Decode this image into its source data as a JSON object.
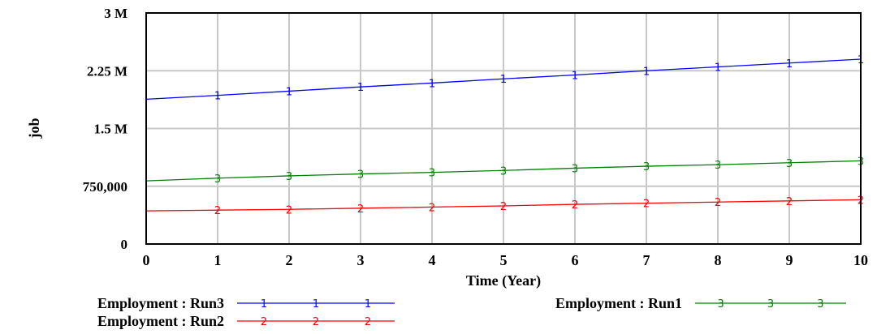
{
  "chart_data": {
    "type": "line",
    "title": "",
    "xlabel": "Time (Year)",
    "ylabel": "job",
    "x": [
      0,
      1,
      2,
      3,
      4,
      5,
      6,
      7,
      8,
      9,
      10
    ],
    "xlim": [
      0,
      10
    ],
    "ylim": [
      0,
      3000000
    ],
    "x_ticks": [
      "0",
      "1",
      "2",
      "3",
      "4",
      "5",
      "6",
      "7",
      "8",
      "9",
      "10"
    ],
    "y_ticks": [
      {
        "value": 0,
        "label": "0"
      },
      {
        "value": 750000,
        "label": "750,000"
      },
      {
        "value": 1500000,
        "label": "1.5 M"
      },
      {
        "value": 2250000,
        "label": "2.25 M"
      },
      {
        "value": 3000000,
        "label": "3 M"
      }
    ],
    "grid": true,
    "legend_position": "bottom",
    "series": [
      {
        "name": "Employment : Run3",
        "marker": "1",
        "color": "#0000ff",
        "values": [
          1880000,
          1930000,
          1985000,
          2040000,
          2090000,
          2145000,
          2195000,
          2250000,
          2300000,
          2350000,
          2400000
        ]
      },
      {
        "name": "Employment : Run1",
        "marker": "3",
        "color": "#008000",
        "values": [
          820000,
          855000,
          885000,
          910000,
          930000,
          955000,
          985000,
          1010000,
          1030000,
          1055000,
          1080000
        ]
      },
      {
        "name": "Employment : Run2",
        "marker": "2",
        "color": "#ff0000",
        "values": [
          430000,
          440000,
          450000,
          465000,
          480000,
          495000,
          515000,
          530000,
          545000,
          560000,
          575000
        ]
      }
    ]
  }
}
